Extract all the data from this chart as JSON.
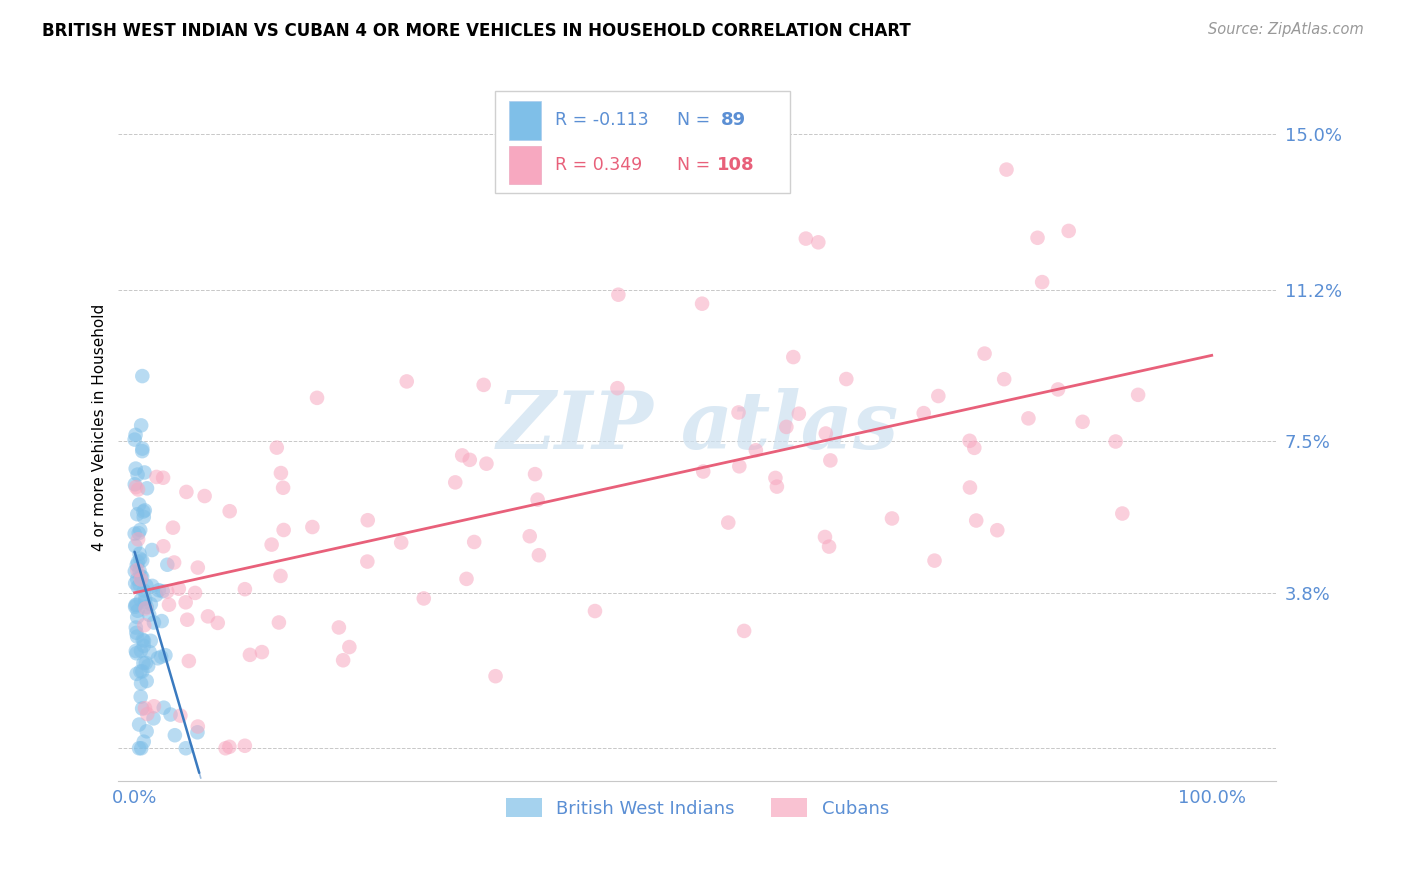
{
  "title": "BRITISH WEST INDIAN VS CUBAN 4 OR MORE VEHICLES IN HOUSEHOLD CORRELATION CHART",
  "source_text": "Source: ZipAtlas.com",
  "ylabel": "4 or more Vehicles in Household",
  "ytick_vals": [
    0.0,
    0.038,
    0.075,
    0.112,
    0.15
  ],
  "ytick_labels": [
    "",
    "3.8%",
    "7.5%",
    "11.2%",
    "15.0%"
  ],
  "xtick_vals": [
    0.0,
    1.0
  ],
  "xtick_labels": [
    "0.0%",
    "100.0%"
  ],
  "xlim": [
    -0.015,
    1.06
  ],
  "ylim": [
    -0.008,
    0.165
  ],
  "color_blue_scatter": "#7fbfe8",
  "color_pink_scatter": "#f7a8c0",
  "color_blue_line": "#3a7abf",
  "color_pink_line": "#e8607a",
  "color_axis_text": "#5b8fd4",
  "color_grid": "#c8c8c8",
  "color_legend_border": "#d0d0d0",
  "watermark_color": "#cce0f0",
  "n_blue": 89,
  "n_pink": 108,
  "R_blue": -0.113,
  "R_pink": 0.349,
  "blue_intercept": 0.048,
  "blue_slope": -0.9,
  "pink_intercept": 0.038,
  "pink_slope": 0.058
}
